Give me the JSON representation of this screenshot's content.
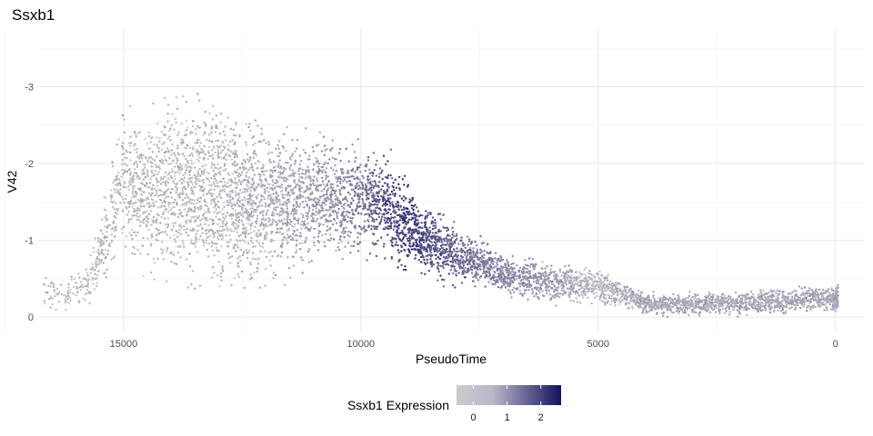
{
  "chart_data": {
    "type": "scatter",
    "title": "Ssxb1",
    "xlabel": "PseudoTime",
    "ylabel": "V42",
    "xlim": [
      16800,
      -600
    ],
    "ylim": [
      0.2,
      -3.75
    ],
    "x_reversed": true,
    "y_reversed": true,
    "x_ticks": [
      15000,
      10000,
      5000,
      0
    ],
    "x_tick_labels": [
      "15000",
      "10000",
      "5000",
      "0"
    ],
    "y_ticks": [
      -3,
      -2,
      -1,
      0
    ],
    "y_tick_labels": [
      "-3",
      "-2",
      "-1",
      "0"
    ],
    "grid": true,
    "color_scale": {
      "low": "#cccccc",
      "high": "#15115e",
      "min": -0.5,
      "max": 2.6
    },
    "legend": {
      "title": "Ssxb1 Expression",
      "position": "bottom",
      "ticks": [
        0,
        1,
        2
      ],
      "tick_labels": [
        "0",
        "1",
        "2"
      ]
    },
    "series": [
      {
        "points_approx": true,
        "profile": [
          {
            "x": 16700,
            "y_center": -0.35,
            "y_spread": 0.18,
            "expr": -0.2,
            "n": 40
          },
          {
            "x": 16200,
            "y_center": -0.3,
            "y_spread": 0.18,
            "expr": -0.2,
            "n": 60
          },
          {
            "x": 15700,
            "y_center": -0.45,
            "y_spread": 0.25,
            "expr": -0.2,
            "n": 80
          },
          {
            "x": 15400,
            "y_center": -1.0,
            "y_spread": 0.5,
            "expr": -0.1,
            "n": 120
          },
          {
            "x": 15000,
            "y_center": -1.8,
            "y_spread": 0.7,
            "expr": -0.1,
            "n": 220
          },
          {
            "x": 14500,
            "y_center": -1.6,
            "y_spread": 0.8,
            "expr": -0.1,
            "n": 240
          },
          {
            "x": 14000,
            "y_center": -1.7,
            "y_spread": 0.9,
            "expr": -0.1,
            "n": 280
          },
          {
            "x": 13500,
            "y_center": -1.7,
            "y_spread": 0.95,
            "expr": -0.1,
            "n": 300
          },
          {
            "x": 13000,
            "y_center": -1.6,
            "y_spread": 1.0,
            "expr": -0.1,
            "n": 320
          },
          {
            "x": 12500,
            "y_center": -1.5,
            "y_spread": 0.9,
            "expr": 0.0,
            "n": 300
          },
          {
            "x": 12000,
            "y_center": -1.5,
            "y_spread": 0.85,
            "expr": 0.1,
            "n": 280
          },
          {
            "x": 11500,
            "y_center": -1.5,
            "y_spread": 0.8,
            "expr": 0.2,
            "n": 260
          },
          {
            "x": 11000,
            "y_center": -1.55,
            "y_spread": 0.7,
            "expr": 0.4,
            "n": 240
          },
          {
            "x": 10500,
            "y_center": -1.55,
            "y_spread": 0.6,
            "expr": 0.6,
            "n": 220
          },
          {
            "x": 10000,
            "y_center": -1.5,
            "y_spread": 0.55,
            "expr": 1.0,
            "n": 220
          },
          {
            "x": 9500,
            "y_center": -1.5,
            "y_spread": 0.55,
            "expr": 1.7,
            "n": 240
          },
          {
            "x": 9000,
            "y_center": -1.15,
            "y_spread": 0.45,
            "expr": 2.0,
            "n": 240
          },
          {
            "x": 8500,
            "y_center": -0.95,
            "y_spread": 0.35,
            "expr": 1.6,
            "n": 220
          },
          {
            "x": 8000,
            "y_center": -0.8,
            "y_spread": 0.3,
            "expr": 1.3,
            "n": 200
          },
          {
            "x": 7500,
            "y_center": -0.7,
            "y_spread": 0.25,
            "expr": 1.0,
            "n": 180
          },
          {
            "x": 7000,
            "y_center": -0.55,
            "y_spread": 0.22,
            "expr": 0.8,
            "n": 160
          },
          {
            "x": 6500,
            "y_center": -0.5,
            "y_spread": 0.22,
            "expr": 0.6,
            "n": 150
          },
          {
            "x": 6000,
            "y_center": -0.45,
            "y_spread": 0.22,
            "expr": 0.4,
            "n": 150
          },
          {
            "x": 5500,
            "y_center": -0.45,
            "y_spread": 0.2,
            "expr": 0.1,
            "n": 150
          },
          {
            "x": 5000,
            "y_center": -0.4,
            "y_spread": 0.18,
            "expr": -0.1,
            "n": 140
          },
          {
            "x": 4500,
            "y_center": -0.3,
            "y_spread": 0.15,
            "expr": 0.1,
            "n": 140
          },
          {
            "x": 4000,
            "y_center": -0.18,
            "y_spread": 0.12,
            "expr": 0.2,
            "n": 140
          },
          {
            "x": 3500,
            "y_center": -0.16,
            "y_spread": 0.12,
            "expr": 0.2,
            "n": 140
          },
          {
            "x": 3000,
            "y_center": -0.16,
            "y_spread": 0.12,
            "expr": 0.2,
            "n": 140
          },
          {
            "x": 2500,
            "y_center": -0.17,
            "y_spread": 0.12,
            "expr": 0.2,
            "n": 140
          },
          {
            "x": 2000,
            "y_center": -0.18,
            "y_spread": 0.13,
            "expr": 0.2,
            "n": 140
          },
          {
            "x": 1500,
            "y_center": -0.2,
            "y_spread": 0.13,
            "expr": 0.2,
            "n": 140
          },
          {
            "x": 1000,
            "y_center": -0.22,
            "y_spread": 0.13,
            "expr": 0.2,
            "n": 140
          },
          {
            "x": 500,
            "y_center": -0.24,
            "y_spread": 0.14,
            "expr": 0.2,
            "n": 130
          },
          {
            "x": 0,
            "y_center": -0.25,
            "y_spread": 0.14,
            "expr": 0.2,
            "n": 100
          }
        ]
      }
    ]
  }
}
